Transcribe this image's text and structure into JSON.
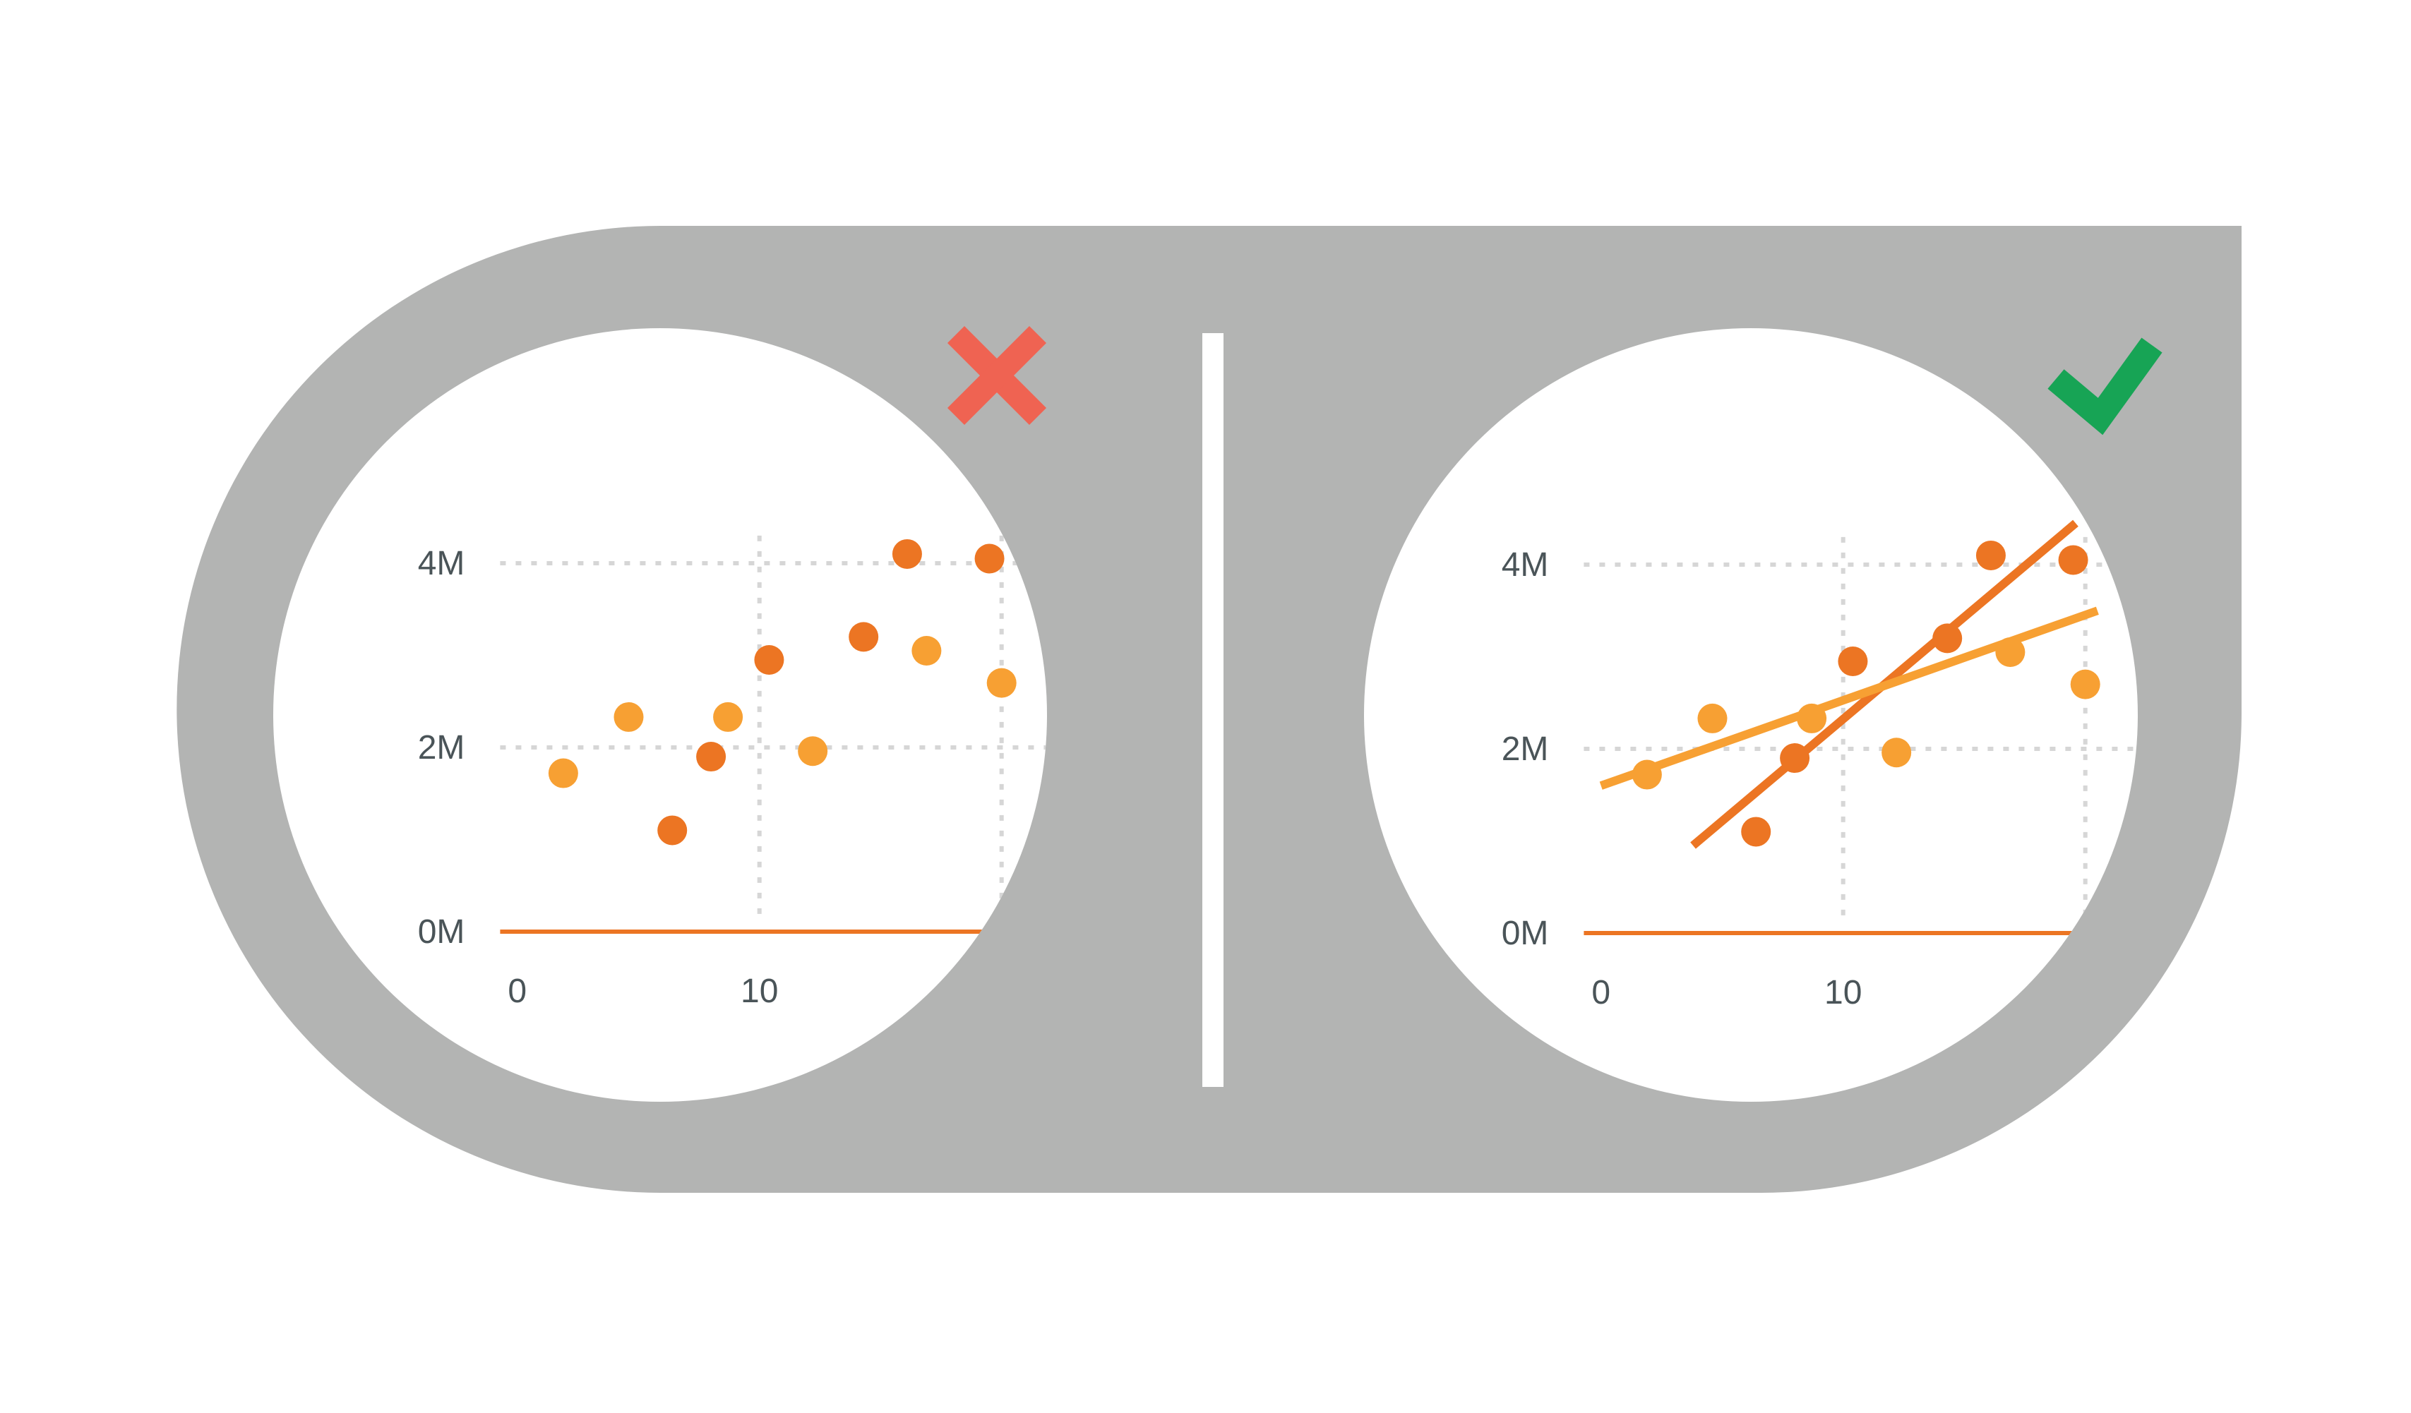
{
  "colors": {
    "frame": "#b3b4b3",
    "lens": "#ffffff",
    "divider": "#ffffff",
    "grid": "#d6d6d6",
    "dark_orange": "#ec7523",
    "light_orange": "#f7a033",
    "cross": "#ef6352",
    "check": "#17a455",
    "tick_text": "#4a5458"
  },
  "icons": {
    "left": "cross-icon",
    "right": "check-icon"
  },
  "chart_data": [
    {
      "type": "scatter",
      "panel": "left",
      "x_ticks": [
        "0",
        "10"
      ],
      "y_ticks": [
        "0M",
        "2M",
        "4M"
      ],
      "x_tick_values": [
        0,
        10
      ],
      "y_tick_values": [
        0,
        2,
        4
      ],
      "xlim": [
        -2,
        20.5
      ],
      "ylim": [
        -0.5,
        5.5
      ],
      "grid": true,
      "series": [
        {
          "values": [
            [
              8,
              1.9
            ],
            [
              10.4,
              2.95
            ],
            [
              6.4,
              1.1
            ],
            [
              14.3,
              3.2
            ],
            [
              16.1,
              4.1
            ],
            [
              19.5,
              4.05
            ]
          ]
        },
        {
          "values": [
            [
              1.9,
              1.72
            ],
            [
              4.6,
              2.33
            ],
            [
              8.7,
              2.33
            ],
            [
              12.2,
              1.96
            ],
            [
              16.9,
              3.05
            ],
            [
              20,
              2.7
            ]
          ]
        }
      ]
    },
    {
      "type": "scatter",
      "panel": "right",
      "x_ticks": [
        "0",
        "10"
      ],
      "y_ticks": [
        "0M",
        "2M",
        "4M"
      ],
      "x_tick_values": [
        0,
        10
      ],
      "y_tick_values": [
        0,
        2,
        4
      ],
      "xlim": [
        -2,
        20.5
      ],
      "ylim": [
        -0.5,
        5.5
      ],
      "grid": true,
      "series": [
        {
          "values": [
            [
              8,
              1.9
            ],
            [
              10.4,
              2.95
            ],
            [
              6.4,
              1.1
            ],
            [
              14.3,
              3.2
            ],
            [
              16.1,
              4.1
            ],
            [
              19.5,
              4.05
            ]
          ],
          "trendline": [
            [
              3.8,
              0.95
            ],
            [
              19.6,
              4.45
            ]
          ]
        },
        {
          "values": [
            [
              1.9,
              1.72
            ],
            [
              4.6,
              2.33
            ],
            [
              8.7,
              2.33
            ],
            [
              12.2,
              1.96
            ],
            [
              16.9,
              3.05
            ],
            [
              20,
              2.7
            ]
          ],
          "trendline": [
            [
              0,
              1.6
            ],
            [
              20.5,
              3.5
            ]
          ]
        }
      ]
    }
  ]
}
